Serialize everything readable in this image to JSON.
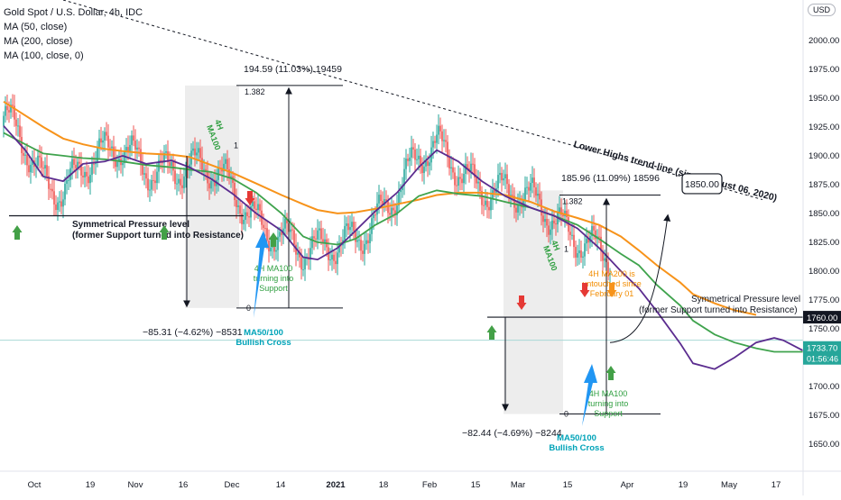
{
  "legend": {
    "symbol": "Gold Spot / U.S. Dollar, 4h, IDC",
    "ma50": "MA (50, close)",
    "ma200": "MA (200, close)",
    "ma100": "MA (100, close, 0)"
  },
  "currency_button": "USD",
  "colors": {
    "up": "#26a69a",
    "down": "#ef5350",
    "ma50": "#5b2c8f",
    "ma100": "#3fa34d",
    "ma200": "#f7931a",
    "cyan_text": "#00a3b8",
    "green_text": "#2e9e3f",
    "orange_text": "#f28c00",
    "arrow_green": "#43a047",
    "arrow_red": "#e53935",
    "arrow_orange": "#f7931a",
    "arrow_blue": "#2196f3",
    "price_tag_current": "#26a69a",
    "price_tag_level": "#131722"
  },
  "chart_data": {
    "type": "candlestick",
    "y_axis": {
      "ticks": [
        1650,
        1675,
        1700,
        1725,
        1750,
        1775,
        1800,
        1825,
        1850,
        1875,
        1900,
        1925,
        1950,
        1975,
        2000
      ],
      "top_label": "2"
    },
    "x_axis": {
      "ticks": [
        "Oct",
        "19",
        "Nov",
        "16",
        "Dec",
        "14",
        "2021",
        "18",
        "Feb",
        "15",
        "Mar",
        "15",
        "Apr",
        "19",
        "May",
        "17"
      ]
    },
    "current_price": "1733.70",
    "countdown": "01:56:46",
    "level_price": "1760.00",
    "target_label": "1850.00",
    "annotations": {
      "trendline": "Lower Highs trend-line (since August 06, 2020)",
      "sym_left": [
        "Symmetrical Pressure level",
        "(former Support turned into Resistance)"
      ],
      "sym_right": [
        "Symmetrical Pressure level",
        "(former Support turned into Resistance)"
      ],
      "left_up_measure": "194.59 (11.03%) 19459",
      "left_down_measure": "−85.31 (−4.62%) −8531",
      "right_up_measure": "185.96 (11.09%) 18596",
      "right_down_measure": "−82.44 (−4.69%) −8244",
      "fib_top": "1.382",
      "fib_mid": "1",
      "fib_zero": "0",
      "ma100_tag": "4H MA100",
      "ma50_cross": [
        "MA50/100",
        "Bullish Cross"
      ],
      "ma100_support": [
        "4H MA100",
        "turning into",
        "Support"
      ],
      "ma200_note": [
        "4H MA200 is",
        "untouched since",
        "February 01"
      ]
    },
    "ma50": [
      [
        0,
        1926
      ],
      [
        12,
        1905
      ],
      [
        22,
        1882
      ],
      [
        33,
        1878
      ],
      [
        44,
        1893
      ],
      [
        56,
        1895
      ],
      [
        66,
        1900
      ],
      [
        79,
        1893
      ],
      [
        93,
        1896
      ],
      [
        103,
        1890
      ],
      [
        115,
        1880
      ],
      [
        127,
        1867
      ],
      [
        140,
        1850
      ],
      [
        154,
        1835
      ],
      [
        166,
        1812
      ],
      [
        174,
        1810
      ],
      [
        185,
        1820
      ],
      [
        195,
        1835
      ],
      [
        206,
        1852
      ],
      [
        218,
        1868
      ],
      [
        230,
        1890
      ],
      [
        240,
        1905
      ],
      [
        252,
        1895
      ],
      [
        265,
        1878
      ],
      [
        278,
        1865
      ],
      [
        292,
        1855
      ],
      [
        305,
        1848
      ],
      [
        318,
        1837
      ],
      [
        330,
        1820
      ],
      [
        342,
        1800
      ],
      [
        352,
        1785
      ],
      [
        362,
        1765
      ],
      [
        375,
        1737
      ],
      [
        382,
        1720
      ],
      [
        394,
        1715
      ],
      [
        405,
        1725
      ],
      [
        417,
        1738
      ],
      [
        427,
        1742
      ],
      [
        432,
        1740
      ],
      [
        443,
        1731
      ]
    ],
    "ma100": [
      [
        0,
        1920
      ],
      [
        12,
        1910
      ],
      [
        22,
        1902
      ],
      [
        33,
        1900
      ],
      [
        44,
        1898
      ],
      [
        56,
        1897
      ],
      [
        66,
        1895
      ],
      [
        79,
        1892
      ],
      [
        93,
        1890
      ],
      [
        103,
        1888
      ],
      [
        115,
        1886
      ],
      [
        127,
        1880
      ],
      [
        140,
        1868
      ],
      [
        154,
        1850
      ],
      [
        166,
        1830
      ],
      [
        174,
        1825
      ],
      [
        185,
        1823
      ],
      [
        195,
        1828
      ],
      [
        206,
        1840
      ],
      [
        218,
        1850
      ],
      [
        230,
        1865
      ],
      [
        240,
        1870
      ],
      [
        252,
        1867
      ],
      [
        265,
        1865
      ],
      [
        278,
        1860
      ],
      [
        292,
        1855
      ],
      [
        305,
        1848
      ],
      [
        318,
        1840
      ],
      [
        330,
        1828
      ],
      [
        342,
        1815
      ],
      [
        352,
        1805
      ],
      [
        362,
        1788
      ],
      [
        375,
        1770
      ],
      [
        382,
        1757
      ],
      [
        394,
        1745
      ],
      [
        405,
        1738
      ],
      [
        417,
        1733
      ],
      [
        427,
        1730
      ],
      [
        432,
        1730
      ],
      [
        443,
        1730
      ]
    ],
    "ma200": [
      [
        0,
        1947
      ],
      [
        12,
        1935
      ],
      [
        22,
        1925
      ],
      [
        33,
        1915
      ],
      [
        44,
        1910
      ],
      [
        56,
        1906
      ],
      [
        66,
        1904
      ],
      [
        79,
        1902
      ],
      [
        93,
        1901
      ],
      [
        103,
        1899
      ],
      [
        115,
        1892
      ],
      [
        127,
        1885
      ],
      [
        140,
        1876
      ],
      [
        154,
        1866
      ],
      [
        166,
        1858
      ],
      [
        174,
        1853
      ],
      [
        185,
        1850
      ],
      [
        195,
        1851
      ],
      [
        206,
        1854
      ],
      [
        218,
        1858
      ],
      [
        230,
        1862
      ],
      [
        240,
        1866
      ],
      [
        252,
        1868
      ],
      [
        265,
        1868
      ],
      [
        278,
        1866
      ],
      [
        292,
        1860
      ],
      [
        305,
        1852
      ],
      [
        318,
        1846
      ],
      [
        330,
        1840
      ],
      [
        342,
        1830
      ],
      [
        352,
        1818
      ],
      [
        362,
        1805
      ],
      [
        375,
        1790
      ],
      [
        382,
        1780
      ],
      [
        394,
        1772
      ],
      [
        405,
        1766
      ],
      [
        417,
        1762
      ]
    ]
  }
}
